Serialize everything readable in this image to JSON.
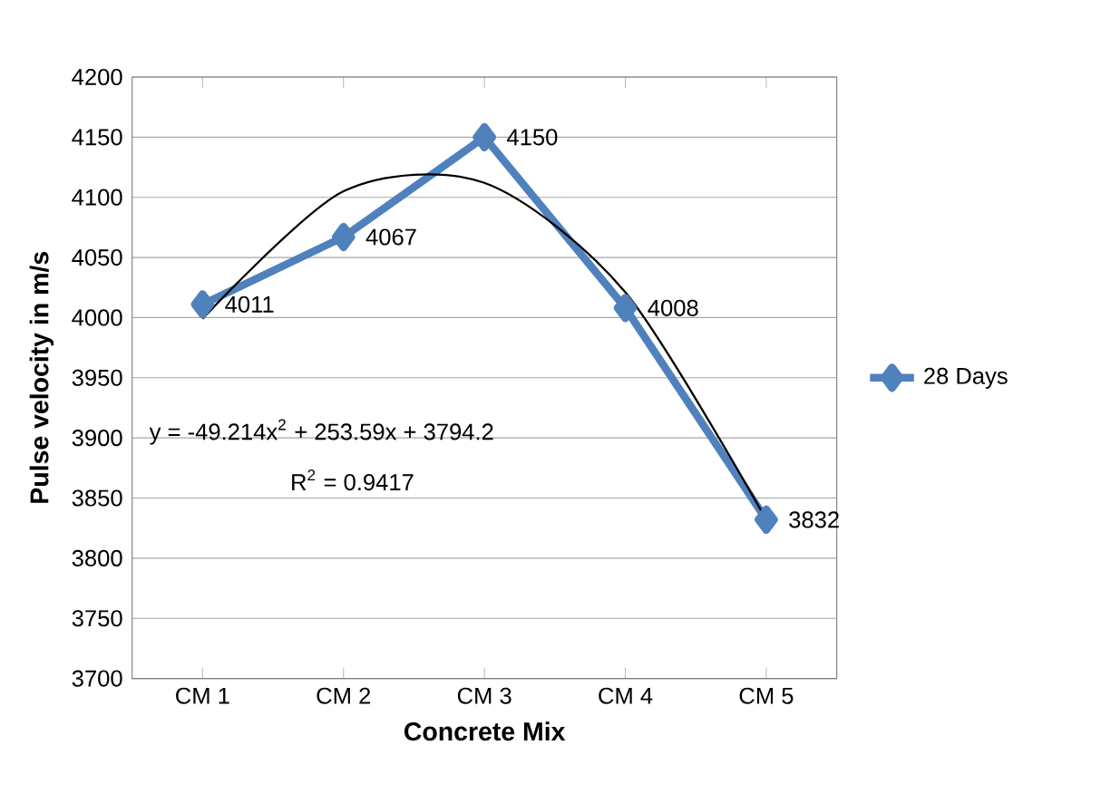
{
  "chart_data": {
    "type": "line",
    "xlabel": "Concrete Mix",
    "ylabel": "Pulse velocity in m/s",
    "categories": [
      "CM 1",
      "CM 2",
      "CM 3",
      "CM 4",
      "CM 5"
    ],
    "series": [
      {
        "name": "28 Days",
        "color": "#4f81bd",
        "values": [
          4011,
          4067,
          4150,
          4008,
          3832
        ],
        "marker": "diamond",
        "data_labels": true
      },
      {
        "type": "line",
        "color": "#000000",
        "values": [
          3999,
          4105,
          4112,
          4021,
          3832
        ],
        "marker": "none"
      }
    ],
    "annotations": [
      "y = -49.214x$^{2}$ + 253.59x + 3794.2",
      "R$^{2}$ = 0.9417"
    ],
    "ylim": [
      3700,
      4200
    ],
    "yticks": [
      3700,
      3750,
      3800,
      3850,
      3900,
      3950,
      4000,
      4050,
      4100,
      4150,
      4200
    ],
    "grid": "y",
    "legend": "right"
  }
}
